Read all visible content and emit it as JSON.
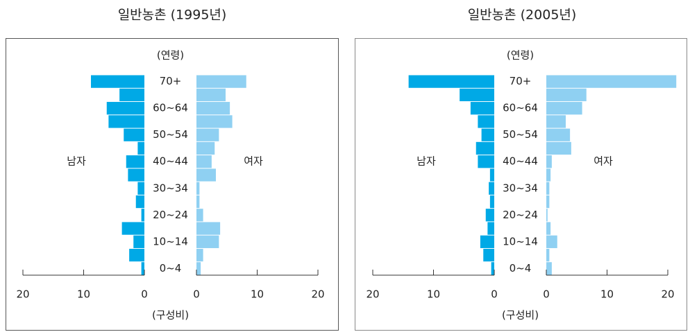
{
  "chart_data": [
    {
      "type": "pyramid",
      "title": "일반농촌 (1995년)",
      "y_label": "(연령)",
      "x_label": "(구성비)",
      "categories": [
        "70+",
        null,
        "60~64",
        null,
        "50~54",
        null,
        "40~44",
        null,
        "30~34",
        null,
        "20~24",
        null,
        "10~14",
        null,
        "0~4"
      ],
      "series": [
        {
          "name": "남자",
          "color": "#00a9e6",
          "values": [
            8.8,
            4.1,
            6.2,
            5.9,
            3.4,
            1.1,
            3.0,
            2.7,
            1.1,
            1.4,
            0.5,
            3.7,
            1.8,
            2.5,
            0.5
          ]
        },
        {
          "name": "여자",
          "color": "#8fd0f2",
          "values": [
            8.2,
            4.8,
            5.5,
            5.9,
            3.7,
            3.0,
            2.5,
            3.2,
            0.5,
            0.5,
            1.1,
            3.9,
            3.7,
            1.1,
            0.7
          ]
        }
      ],
      "xlim": [
        0,
        20
      ],
      "xticks": [
        0,
        10,
        20
      ]
    },
    {
      "type": "pyramid",
      "title": "일반농촌 (2005년)",
      "y_label": "(연령)",
      "x_label": "(구성비)",
      "categories": [
        "70+",
        null,
        "60~64",
        null,
        "50~54",
        null,
        "40~44",
        null,
        "30~34",
        null,
        "20~24",
        null,
        "10~14",
        null,
        "0~4"
      ],
      "series": [
        {
          "name": "남자",
          "color": "#00a9e6",
          "values": [
            14.1,
            5.7,
            3.9,
            2.7,
            2.1,
            3.0,
            2.7,
            0.7,
            0.9,
            0.7,
            1.4,
            1.1,
            2.3,
            1.8,
            0.5
          ]
        },
        {
          "name": "여자",
          "color": "#8fd0f2",
          "values": [
            21.4,
            6.6,
            5.9,
            3.2,
            3.9,
            4.1,
            0.9,
            0.7,
            0.5,
            0.5,
            0.2,
            0.7,
            1.8,
            0.5,
            0.9
          ]
        }
      ],
      "xlim": [
        0,
        20
      ],
      "xticks": [
        0,
        10,
        20
      ]
    }
  ]
}
